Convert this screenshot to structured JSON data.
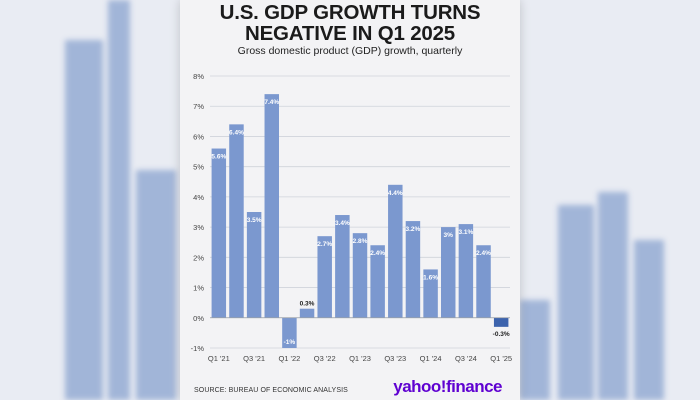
{
  "header": {
    "title_line1": "U.S. GDP GROWTH TURNS",
    "title_line2": "NEGATIVE IN Q1 2025",
    "subtitle": "Gross domestic product (GDP) growth, quarterly"
  },
  "footer": {
    "source": "SOURCE: BUREAU OF ECONOMIC ANALYSIS",
    "brand": "yahoo!finance"
  },
  "colors": {
    "bar": "#7b98cf",
    "bar_negative_latest": "#3c63ad",
    "brand": "#5f01d1"
  },
  "chart_data": {
    "type": "bar",
    "title": "U.S. GDP GROWTH TURNS NEGATIVE IN Q1 2025",
    "subtitle": "Gross domestic product (GDP) growth, quarterly",
    "ylim": [
      -1,
      8
    ],
    "yticks": [
      -1,
      0,
      1,
      2,
      3,
      4,
      5,
      6,
      7,
      8
    ],
    "ytick_labels": [
      "-1%",
      "0%",
      "1%",
      "2%",
      "3%",
      "4%",
      "5%",
      "6%",
      "7%",
      "8%"
    ],
    "grid": true,
    "x_tick_labels": [
      "Q1 '21",
      "Q3 '21",
      "Q1 '22",
      "Q3 '22",
      "Q1 '23",
      "Q3 '23",
      "Q1 '24",
      "Q3 '24",
      "Q1 '25"
    ],
    "values": [
      5.6,
      6.4,
      3.5,
      7.4,
      -1.0,
      0.3,
      2.7,
      3.4,
      2.8,
      2.4,
      4.4,
      3.2,
      1.6,
      3.0,
      3.1,
      2.4,
      -0.3
    ],
    "data_labels": [
      "5.6%",
      "6.4%",
      "3.5%",
      "7.4%",
      "-1%",
      "0.3%",
      "2.7%",
      "3.4%",
      "2.8%",
      "2.4%",
      "4.4%",
      "3.2%",
      "1.6%",
      "3%",
      "3.1%",
      "2.4%",
      "-0.3%"
    ]
  }
}
